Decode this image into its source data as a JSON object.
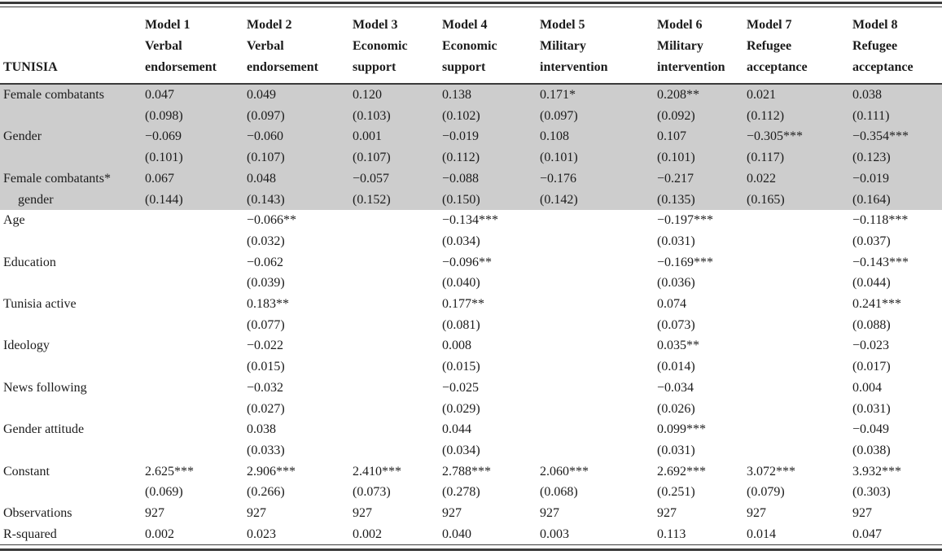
{
  "table": {
    "corner_label": "TUNISIA",
    "shade_color": "#cdcdcd",
    "rule_color": "#3b3b3b",
    "models": [
      {
        "name": "Model 1",
        "outcome": "Verbal endorsement"
      },
      {
        "name": "Model 2",
        "outcome": "Verbal endorsement"
      },
      {
        "name": "Model 3",
        "outcome": "Economic support"
      },
      {
        "name": "Model 4",
        "outcome": "Economic support"
      },
      {
        "name": "Model 5",
        "outcome": "Military intervention"
      },
      {
        "name": "Model 6",
        "outcome": "Military intervention"
      },
      {
        "name": "Model 7",
        "outcome": "Refugee acceptance"
      },
      {
        "name": "Model 8",
        "outcome": "Refugee acceptance"
      }
    ],
    "rows": [
      {
        "label": "Female combatants",
        "label2": "",
        "shaded": true,
        "coefs": [
          "0.047",
          "0.049",
          "0.120",
          "0.138",
          "0.171*",
          "0.208**",
          "0.021",
          "0.038"
        ],
        "ses": [
          "(0.098)",
          "(0.097)",
          "(0.103)",
          "(0.102)",
          "(0.097)",
          "(0.092)",
          "(0.112)",
          "(0.111)"
        ]
      },
      {
        "label": "Gender",
        "label2": "",
        "shaded": true,
        "coefs": [
          "−0.069",
          "−0.060",
          "0.001",
          "−0.019",
          "0.108",
          "0.107",
          "−0.305***",
          "−0.354***"
        ],
        "ses": [
          "(0.101)",
          "(0.107)",
          "(0.107)",
          "(0.112)",
          "(0.101)",
          "(0.101)",
          "(0.117)",
          "(0.123)"
        ]
      },
      {
        "label": "Female combatants*",
        "label2": "gender",
        "shaded": true,
        "coefs": [
          "0.067",
          "0.048",
          "−0.057",
          "−0.088",
          "−0.176",
          "−0.217",
          "0.022",
          "−0.019"
        ],
        "ses": [
          "(0.144)",
          "(0.143)",
          "(0.152)",
          "(0.150)",
          "(0.142)",
          "(0.135)",
          "(0.165)",
          "(0.164)"
        ]
      },
      {
        "label": "Age",
        "label2": "",
        "shaded": false,
        "coefs": [
          "",
          "−0.066**",
          "",
          "−0.134***",
          "",
          "−0.197***",
          "",
          "−0.118***"
        ],
        "ses": [
          "",
          "(0.032)",
          "",
          "(0.034)",
          "",
          "(0.031)",
          "",
          "(0.037)"
        ]
      },
      {
        "label": "Education",
        "label2": "",
        "shaded": false,
        "coefs": [
          "",
          "−0.062",
          "",
          "−0.096**",
          "",
          "−0.169***",
          "",
          "−0.143***"
        ],
        "ses": [
          "",
          "(0.039)",
          "",
          "(0.040)",
          "",
          "(0.036)",
          "",
          "(0.044)"
        ]
      },
      {
        "label": "Tunisia active",
        "label2": "",
        "shaded": false,
        "coefs": [
          "",
          "0.183**",
          "",
          "0.177**",
          "",
          "0.074",
          "",
          "0.241***"
        ],
        "ses": [
          "",
          "(0.077)",
          "",
          "(0.081)",
          "",
          "(0.073)",
          "",
          "(0.088)"
        ]
      },
      {
        "label": "Ideology",
        "label2": "",
        "shaded": false,
        "coefs": [
          "",
          "−0.022",
          "",
          "0.008",
          "",
          "0.035**",
          "",
          "−0.023"
        ],
        "ses": [
          "",
          "(0.015)",
          "",
          "(0.015)",
          "",
          "(0.014)",
          "",
          "(0.017)"
        ]
      },
      {
        "label": "News following",
        "label2": "",
        "shaded": false,
        "coefs": [
          "",
          "−0.032",
          "",
          "−0.025",
          "",
          "−0.034",
          "",
          "0.004"
        ],
        "ses": [
          "",
          "(0.027)",
          "",
          "(0.029)",
          "",
          "(0.026)",
          "",
          "(0.031)"
        ]
      },
      {
        "label": "Gender attitude",
        "label2": "",
        "shaded": false,
        "coefs": [
          "",
          "0.038",
          "",
          "0.044",
          "",
          "0.099***",
          "",
          "−0.049"
        ],
        "ses": [
          "",
          "(0.033)",
          "",
          "(0.034)",
          "",
          "(0.031)",
          "",
          "(0.038)"
        ]
      },
      {
        "label": "Constant",
        "label2": "",
        "shaded": false,
        "coefs": [
          "2.625***",
          "2.906***",
          "2.410***",
          "2.788***",
          "2.060***",
          "2.692***",
          "3.072***",
          "3.932***"
        ],
        "ses": [
          "(0.069)",
          "(0.266)",
          "(0.073)",
          "(0.278)",
          "(0.068)",
          "(0.251)",
          "(0.079)",
          "(0.303)"
        ]
      }
    ],
    "stat_rows": [
      {
        "label": "Observations",
        "values": [
          "927",
          "927",
          "927",
          "927",
          "927",
          "927",
          "927",
          "927"
        ]
      },
      {
        "label": "R-squared",
        "values": [
          "0.002",
          "0.023",
          "0.002",
          "0.040",
          "0.003",
          "0.113",
          "0.014",
          "0.047"
        ]
      }
    ]
  }
}
